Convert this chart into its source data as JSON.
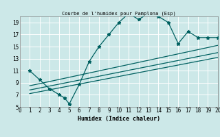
{
  "title": "Courbe de l'humidex pour Pamplona (Esp)",
  "xlabel": "Humidex (Indice chaleur)",
  "bg_color": "#cce8e8",
  "grid_color": "#b0d8d8",
  "line_color": "#006060",
  "xlim": [
    0,
    20
  ],
  "ylim": [
    5,
    20
  ],
  "xticks": [
    0,
    1,
    2,
    3,
    4,
    5,
    6,
    7,
    8,
    9,
    10,
    11,
    12,
    13,
    14,
    15,
    16,
    17,
    18,
    19,
    20
  ],
  "yticks": [
    5,
    7,
    9,
    11,
    13,
    15,
    17,
    19
  ],
  "main_x": [
    1,
    2,
    3,
    4,
    4.5,
    5,
    6,
    7,
    8,
    9,
    10,
    11,
    12,
    13,
    14,
    15,
    16,
    17,
    18,
    19,
    20
  ],
  "main_y": [
    11,
    9.5,
    8.0,
    7.0,
    6.5,
    5.5,
    8.7,
    12.5,
    15.0,
    17.0,
    19.0,
    20.5,
    19.5,
    20.5,
    20.0,
    19.0,
    15.5,
    17.5,
    16.5,
    16.5,
    16.5
  ],
  "line1_x": [
    1,
    20
  ],
  "line1_y": [
    7.2,
    13.2
  ],
  "line2_x": [
    1,
    20
  ],
  "line2_y": [
    7.8,
    14.0
  ],
  "line3_x": [
    1,
    20
  ],
  "line3_y": [
    8.5,
    15.2
  ]
}
